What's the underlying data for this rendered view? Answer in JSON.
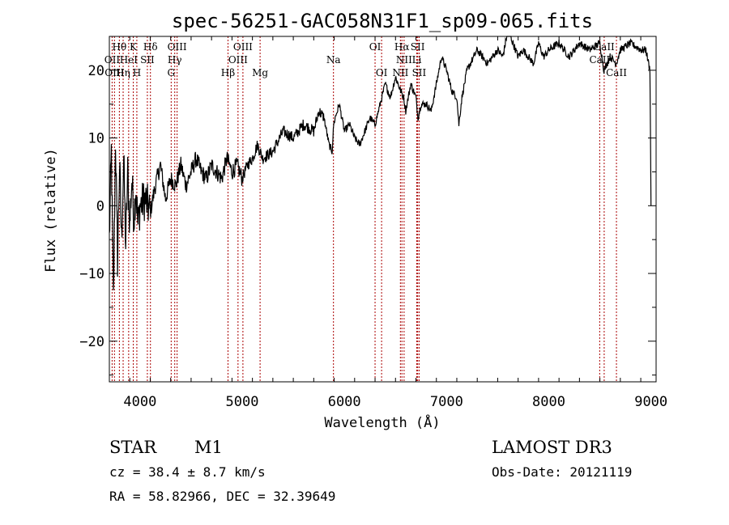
{
  "chart_data": {
    "type": "line",
    "title": "spec-56251-GAC058N31F1_sp09-065.fits",
    "xlabel": "Wavelength (Å)",
    "ylabel": "Flux (relative)",
    "xlim": [
      3700,
      9050
    ],
    "ylim": [
      -26,
      25
    ],
    "x_ticks": [
      4000,
      5000,
      6000,
      7000,
      8000,
      9000
    ],
    "x_tick_labels": [
      "4000",
      "5000",
      "6000",
      "7000",
      "8000",
      "9000"
    ],
    "y_ticks": [
      -20,
      -10,
      0,
      10,
      20
    ],
    "y_tick_labels": [
      "−20",
      "−10",
      "0",
      "10",
      "20"
    ],
    "line_color": "#000000",
    "marker_color": "#aa0000",
    "series": [
      {
        "name": "flux",
        "x": [
          3700,
          3720,
          3740,
          3760,
          3780,
          3800,
          3820,
          3840,
          3860,
          3880,
          3900,
          3920,
          3940,
          3960,
          3980,
          4000,
          4050,
          4100,
          4150,
          4200,
          4250,
          4300,
          4350,
          4400,
          4450,
          4500,
          4550,
          4600,
          4650,
          4700,
          4750,
          4800,
          4850,
          4900,
          4950,
          5000,
          5050,
          5100,
          5150,
          5200,
          5300,
          5400,
          5500,
          5600,
          5700,
          5750,
          5800,
          5850,
          5880,
          5895,
          5910,
          5950,
          6000,
          6050,
          6100,
          6150,
          6200,
          6250,
          6300,
          6350,
          6400,
          6450,
          6500,
          6550,
          6580,
          6600,
          6650,
          6700,
          6720,
          6750,
          6800,
          6850,
          6900,
          6950,
          7000,
          7050,
          7100,
          7120,
          7150,
          7200,
          7300,
          7400,
          7500,
          7550,
          7600,
          7650,
          7700,
          7750,
          7800,
          7850,
          7900,
          7950,
          8000,
          8100,
          8200,
          8300,
          8400,
          8500,
          8540,
          8600,
          8660,
          8700,
          8800,
          8900,
          8950,
          8990,
          9000
        ],
        "y": [
          -5,
          8,
          -14,
          10,
          -8,
          6,
          -5,
          7,
          -6,
          5,
          -3,
          4,
          -2,
          3,
          -3,
          0,
          1,
          -1,
          3,
          6,
          1,
          4,
          3,
          6,
          3,
          5,
          7,
          5,
          4,
          6,
          5,
          4,
          7,
          5,
          6,
          4,
          6,
          7,
          9,
          7,
          8,
          11,
          10,
          12,
          11,
          14,
          13,
          9,
          8,
          12,
          13,
          15,
          11,
          12,
          10,
          9,
          11,
          13,
          12,
          15,
          18,
          16,
          19,
          17,
          16,
          14,
          18,
          16,
          13,
          15,
          15,
          14,
          18,
          22,
          20,
          17,
          16,
          12,
          16,
          20,
          23,
          21,
          23,
          22,
          26,
          24,
          22,
          23,
          22,
          21,
          24,
          22,
          23,
          24,
          22,
          24,
          23,
          24,
          20,
          22,
          21,
          23,
          24,
          23,
          23,
          20,
          0
        ]
      }
    ],
    "spectral_lines": [
      {
        "label": "Hθ",
        "wavelength": 3798,
        "row": 0
      },
      {
        "label": "OII",
        "wavelength": 3727,
        "row": 1
      },
      {
        "label": "OIII",
        "wavelength": 3750,
        "row": 2
      },
      {
        "label": "K",
        "wavelength": 3934,
        "row": 0
      },
      {
        "label": "HeI",
        "wavelength": 3889,
        "row": 1
      },
      {
        "label": "Hη",
        "wavelength": 3835,
        "row": 2
      },
      {
        "label": "SII",
        "wavelength": 4072,
        "row": 1
      },
      {
        "label": "H",
        "wavelength": 3969,
        "row": 2
      },
      {
        "label": "Hδ",
        "wavelength": 4102,
        "row": 0
      },
      {
        "label": "OIII",
        "wavelength": 4363,
        "row": 0
      },
      {
        "label": "Hγ",
        "wavelength": 4340,
        "row": 1
      },
      {
        "label": "G",
        "wavelength": 4305,
        "row": 2
      },
      {
        "label": "OIII",
        "wavelength": 5007,
        "row": 0
      },
      {
        "label": "OIII",
        "wavelength": 4959,
        "row": 1
      },
      {
        "label": "Hβ",
        "wavelength": 4861,
        "row": 2
      },
      {
        "label": "Mg",
        "wavelength": 5175,
        "row": 2
      },
      {
        "label": "Na",
        "wavelength": 5893,
        "row": 1
      },
      {
        "label": "OI",
        "wavelength": 6300,
        "row": 0
      },
      {
        "label": "OI",
        "wavelength": 6364,
        "row": 2
      },
      {
        "label": "Hα",
        "wavelength": 6563,
        "row": 0
      },
      {
        "label": "SII",
        "wavelength": 6717,
        "row": 0
      },
      {
        "label": "NII",
        "wavelength": 6584,
        "row": 1
      },
      {
        "label": "Li",
        "wavelength": 6708,
        "row": 1
      },
      {
        "label": "NII",
        "wavelength": 6548,
        "row": 2
      },
      {
        "label": "SII",
        "wavelength": 6731,
        "row": 2
      },
      {
        "label": "CaII",
        "wavelength": 8542,
        "row": 0
      },
      {
        "label": "CaII",
        "wavelength": 8498,
        "row": 1
      },
      {
        "label": "CaII",
        "wavelength": 8662,
        "row": 2
      }
    ]
  },
  "info": {
    "object_class": "STAR",
    "subclass": "M1",
    "survey": "LAMOST DR3",
    "redshift": "cz =  38.4 ± 8.7 km/s",
    "obs_date": "Obs-Date: 20121119",
    "coords": "RA =  58.82966, DEC =  32.39649"
  }
}
